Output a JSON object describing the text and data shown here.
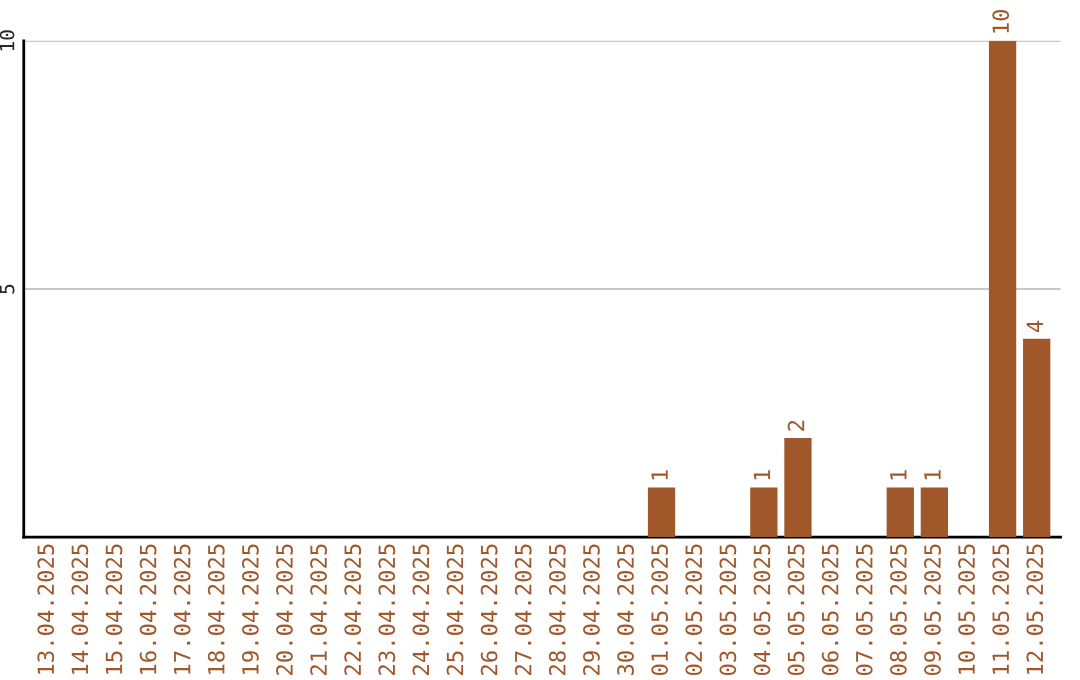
{
  "chart_data": {
    "type": "bar",
    "categories": [
      "13.04.2025",
      "14.04.2025",
      "15.04.2025",
      "16.04.2025",
      "17.04.2025",
      "18.04.2025",
      "19.04.2025",
      "20.04.2025",
      "21.04.2025",
      "22.04.2025",
      "23.04.2025",
      "24.04.2025",
      "25.04.2025",
      "26.04.2025",
      "27.04.2025",
      "28.04.2025",
      "29.04.2025",
      "30.04.2025",
      "01.05.2025",
      "02.05.2025",
      "03.05.2025",
      "04.05.2025",
      "05.05.2025",
      "06.05.2025",
      "07.05.2025",
      "08.05.2025",
      "09.05.2025",
      "10.05.2025",
      "11.05.2025",
      "12.05.2025"
    ],
    "values": [
      0,
      0,
      0,
      0,
      0,
      0,
      0,
      0,
      0,
      0,
      0,
      0,
      0,
      0,
      0,
      0,
      0,
      0,
      1,
      0,
      0,
      1,
      2,
      0,
      0,
      1,
      1,
      0,
      10,
      4
    ],
    "value_labels": [
      null,
      null,
      null,
      null,
      null,
      null,
      null,
      null,
      null,
      null,
      null,
      null,
      null,
      null,
      null,
      null,
      null,
      null,
      "1",
      null,
      null,
      "1",
      "2",
      null,
      null,
      "1",
      "1",
      null,
      "10",
      "4"
    ],
    "color": "#a0572a",
    "ylim": [
      0,
      10
    ],
    "yticks": [
      5,
      10
    ],
    "grid": "y"
  }
}
